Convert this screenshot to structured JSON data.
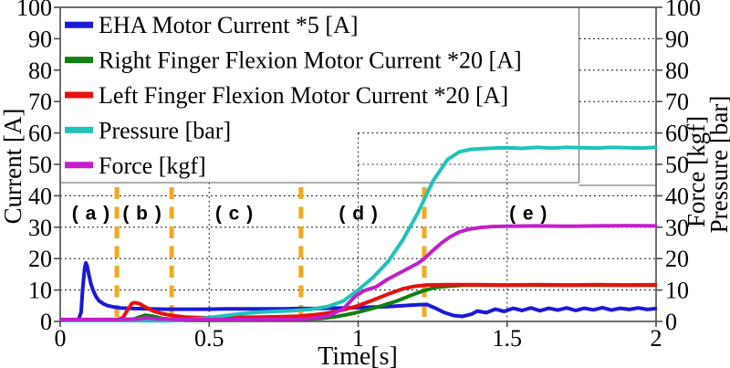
{
  "chart_data": {
    "type": "line",
    "title": "",
    "xlabel": "Time[s]",
    "ylabel_left": "Current [A]",
    "ylabels_right": [
      "Force [kgf]",
      "Pressure [bar]"
    ],
    "xlim": [
      0,
      2
    ],
    "ylim": [
      0,
      100
    ],
    "x_ticks": {
      "values": [
        0,
        0.5,
        1,
        1.5,
        2
      ],
      "labels": [
        "0",
        "0.5",
        "1",
        "1.5",
        "2"
      ]
    },
    "y_ticks": {
      "values": [
        0,
        10,
        20,
        30,
        40,
        50,
        60,
        70,
        80,
        90,
        100
      ],
      "labels": [
        "0",
        "10",
        "20",
        "30",
        "40",
        "50",
        "60",
        "70",
        "80",
        "90",
        "100"
      ]
    },
    "x_gridlines": [
      0.5,
      1,
      1.5
    ],
    "grid_style": "dotted",
    "legend_position": "top-left",
    "colors": {
      "axis": "#4d4d4d",
      "grid": "#1a1a1a",
      "legend_box": "#7d7d7d",
      "divider": "#F3A81F"
    },
    "phase_dividers": {
      "x": [
        0.19,
        0.374,
        0.808,
        1.222
      ],
      "style": "dashed",
      "color": "#F3A81F"
    },
    "region_labels": [
      {
        "text": "( a )",
        "x": 0.104,
        "y": 34.7
      },
      {
        "text": "( b )",
        "x": 0.276,
        "y": 34.7
      },
      {
        "text": "( c )",
        "x": 0.585,
        "y": 34.7
      },
      {
        "text": "( d )",
        "x": 1.002,
        "y": 34.7
      },
      {
        "text": "( e )",
        "x": 1.572,
        "y": 34.7
      }
    ],
    "series": [
      {
        "id": "eha-motor-current",
        "name": "EHA Motor Current *5 [A]",
        "color": "#1A1AD6",
        "points": [
          [
            0,
            0.5
          ],
          [
            0.05,
            0.5
          ],
          [
            0.062,
            0.6
          ],
          [
            0.07,
            3
          ],
          [
            0.075,
            10
          ],
          [
            0.082,
            17
          ],
          [
            0.086,
            18.6
          ],
          [
            0.09,
            17.8
          ],
          [
            0.096,
            15
          ],
          [
            0.103,
            12
          ],
          [
            0.11,
            10
          ],
          [
            0.12,
            7.9
          ],
          [
            0.13,
            6.6
          ],
          [
            0.145,
            5.6
          ],
          [
            0.16,
            5
          ],
          [
            0.18,
            4.6
          ],
          [
            0.2,
            4.3
          ],
          [
            0.25,
            4.1
          ],
          [
            0.3,
            4
          ],
          [
            0.35,
            3.9
          ],
          [
            0.4,
            3.9
          ],
          [
            0.45,
            3.9
          ],
          [
            0.5,
            3.9
          ],
          [
            0.55,
            4
          ],
          [
            0.6,
            4
          ],
          [
            0.65,
            4
          ],
          [
            0.7,
            4
          ],
          [
            0.75,
            4
          ],
          [
            0.8,
            4.1
          ],
          [
            0.85,
            4.1
          ],
          [
            0.9,
            4.2
          ],
          [
            0.95,
            4.3
          ],
          [
            1,
            4.4
          ],
          [
            1.05,
            4.6
          ],
          [
            1.1,
            4.7
          ],
          [
            1.15,
            5
          ],
          [
            1.2,
            5.3
          ],
          [
            1.23,
            5.4
          ],
          [
            1.26,
            4.2
          ],
          [
            1.29,
            2.8
          ],
          [
            1.32,
            1.9
          ],
          [
            1.35,
            1.6
          ],
          [
            1.38,
            2.3
          ],
          [
            1.4,
            3.3
          ],
          [
            1.43,
            2.8
          ],
          [
            1.46,
            3.9
          ],
          [
            1.49,
            3.2
          ],
          [
            1.52,
            4.2
          ],
          [
            1.55,
            3.5
          ],
          [
            1.58,
            4.3
          ],
          [
            1.61,
            3.4
          ],
          [
            1.64,
            4.2
          ],
          [
            1.67,
            3.6
          ],
          [
            1.7,
            4.3
          ],
          [
            1.73,
            3.5
          ],
          [
            1.76,
            4.2
          ],
          [
            1.79,
            3.7
          ],
          [
            1.82,
            4.4
          ],
          [
            1.85,
            3.6
          ],
          [
            1.88,
            4.2
          ],
          [
            1.91,
            3.8
          ],
          [
            1.94,
            4.3
          ],
          [
            1.97,
            3.8
          ],
          [
            2,
            4.1
          ]
        ]
      },
      {
        "id": "right-finger-flexion-motor-current",
        "name": "Right Finger Flexion Motor Current *20 [A]",
        "color": "#0F7F0F",
        "points": [
          [
            0,
            0.4
          ],
          [
            0.1,
            0.4
          ],
          [
            0.2,
            0.4
          ],
          [
            0.24,
            0.5
          ],
          [
            0.26,
            1.2
          ],
          [
            0.285,
            2
          ],
          [
            0.31,
            1.7
          ],
          [
            0.34,
            1
          ],
          [
            0.38,
            0.6
          ],
          [
            0.45,
            0.4
          ],
          [
            0.55,
            0.4
          ],
          [
            0.65,
            0.5
          ],
          [
            0.75,
            0.6
          ],
          [
            0.82,
            0.7
          ],
          [
            0.88,
            1
          ],
          [
            0.93,
            1.6
          ],
          [
            0.98,
            2.5
          ],
          [
            1.03,
            3.7
          ],
          [
            1.08,
            5
          ],
          [
            1.13,
            6.5
          ],
          [
            1.18,
            8.4
          ],
          [
            1.22,
            9.8
          ],
          [
            1.26,
            10.8
          ],
          [
            1.3,
            11.2
          ],
          [
            1.35,
            11.5
          ],
          [
            1.45,
            11.5
          ],
          [
            1.55,
            11.5
          ],
          [
            1.65,
            11.5
          ],
          [
            1.75,
            11.5
          ],
          [
            1.85,
            11.5
          ],
          [
            2,
            11.5
          ]
        ]
      },
      {
        "id": "left-finger-flexion-motor-current",
        "name": "Left Finger Flexion Motor Current *20 [A]",
        "color": "#E8100E",
        "points": [
          [
            0,
            0.5
          ],
          [
            0.1,
            0.5
          ],
          [
            0.19,
            0.5
          ],
          [
            0.21,
            1.2
          ],
          [
            0.225,
            3.5
          ],
          [
            0.24,
            5.7
          ],
          [
            0.25,
            6
          ],
          [
            0.265,
            5.7
          ],
          [
            0.285,
            4.6
          ],
          [
            0.31,
            3.4
          ],
          [
            0.34,
            2.5
          ],
          [
            0.38,
            1.8
          ],
          [
            0.42,
            1.4
          ],
          [
            0.47,
            1.2
          ],
          [
            0.52,
            1.2
          ],
          [
            0.6,
            1.3
          ],
          [
            0.68,
            1.4
          ],
          [
            0.75,
            1.5
          ],
          [
            0.8,
            1.7
          ],
          [
            0.85,
            2.1
          ],
          [
            0.9,
            2.7
          ],
          [
            0.95,
            3.7
          ],
          [
            1,
            5
          ],
          [
            1.05,
            6.8
          ],
          [
            1.1,
            8.7
          ],
          [
            1.15,
            10.4
          ],
          [
            1.19,
            11.2
          ],
          [
            1.23,
            11.6
          ],
          [
            1.3,
            11.7
          ],
          [
            1.4,
            11.7
          ],
          [
            1.5,
            11.6
          ],
          [
            1.6,
            11.7
          ],
          [
            1.7,
            11.6
          ],
          [
            1.8,
            11.7
          ],
          [
            1.9,
            11.6
          ],
          [
            2,
            11.7
          ]
        ]
      },
      {
        "id": "pressure",
        "name": "Pressure [bar]",
        "color": "#1FC3B9",
        "points": [
          [
            0,
            0.3
          ],
          [
            0.1,
            0.3
          ],
          [
            0.2,
            0.3
          ],
          [
            0.3,
            0.2
          ],
          [
            0.36,
            0.2
          ],
          [
            0.42,
            0.5
          ],
          [
            0.48,
            1
          ],
          [
            0.54,
            1.7
          ],
          [
            0.6,
            2.4
          ],
          [
            0.66,
            2.9
          ],
          [
            0.72,
            3.2
          ],
          [
            0.78,
            3.4
          ],
          [
            0.84,
            3.8
          ],
          [
            0.9,
            4.8
          ],
          [
            0.95,
            6.5
          ],
          [
            1,
            10
          ],
          [
            1.05,
            14
          ],
          [
            1.1,
            19
          ],
          [
            1.15,
            26
          ],
          [
            1.2,
            34.5
          ],
          [
            1.25,
            44.5
          ],
          [
            1.3,
            51.5
          ],
          [
            1.34,
            54
          ],
          [
            1.38,
            54.8
          ],
          [
            1.42,
            55
          ],
          [
            1.46,
            55.2
          ],
          [
            1.5,
            55.3
          ],
          [
            1.55,
            55.1
          ],
          [
            1.6,
            55.4
          ],
          [
            1.65,
            55.2
          ],
          [
            1.7,
            55.4
          ],
          [
            1.75,
            55.3
          ],
          [
            1.8,
            55.2
          ],
          [
            1.85,
            55.4
          ],
          [
            1.9,
            55.3
          ],
          [
            1.95,
            55.2
          ],
          [
            2,
            55.4
          ]
        ]
      },
      {
        "id": "force",
        "name": "Force [kgf]",
        "color": "#C21FC9",
        "points": [
          [
            0,
            0.6
          ],
          [
            0.1,
            0.6
          ],
          [
            0.2,
            0.6
          ],
          [
            0.26,
            0.8
          ],
          [
            0.29,
            1.1
          ],
          [
            0.33,
            0.8
          ],
          [
            0.4,
            0.6
          ],
          [
            0.5,
            0.6
          ],
          [
            0.6,
            0.6
          ],
          [
            0.7,
            0.6
          ],
          [
            0.8,
            0.7
          ],
          [
            0.85,
            1
          ],
          [
            0.9,
            1.8
          ],
          [
            0.95,
            4
          ],
          [
            0.99,
            8
          ],
          [
            1.02,
            9.8
          ],
          [
            1.06,
            11
          ],
          [
            1.1,
            13.5
          ],
          [
            1.15,
            16
          ],
          [
            1.2,
            18.5
          ],
          [
            1.22,
            19.8
          ],
          [
            1.25,
            22.5
          ],
          [
            1.28,
            25
          ],
          [
            1.31,
            27
          ],
          [
            1.34,
            28.5
          ],
          [
            1.37,
            29.3
          ],
          [
            1.41,
            29.9
          ],
          [
            1.45,
            30.2
          ],
          [
            1.5,
            30.3
          ],
          [
            1.6,
            30.4
          ],
          [
            1.7,
            30.3
          ],
          [
            1.8,
            30.4
          ],
          [
            1.9,
            30.5
          ],
          [
            2,
            30.4
          ]
        ]
      }
    ]
  }
}
